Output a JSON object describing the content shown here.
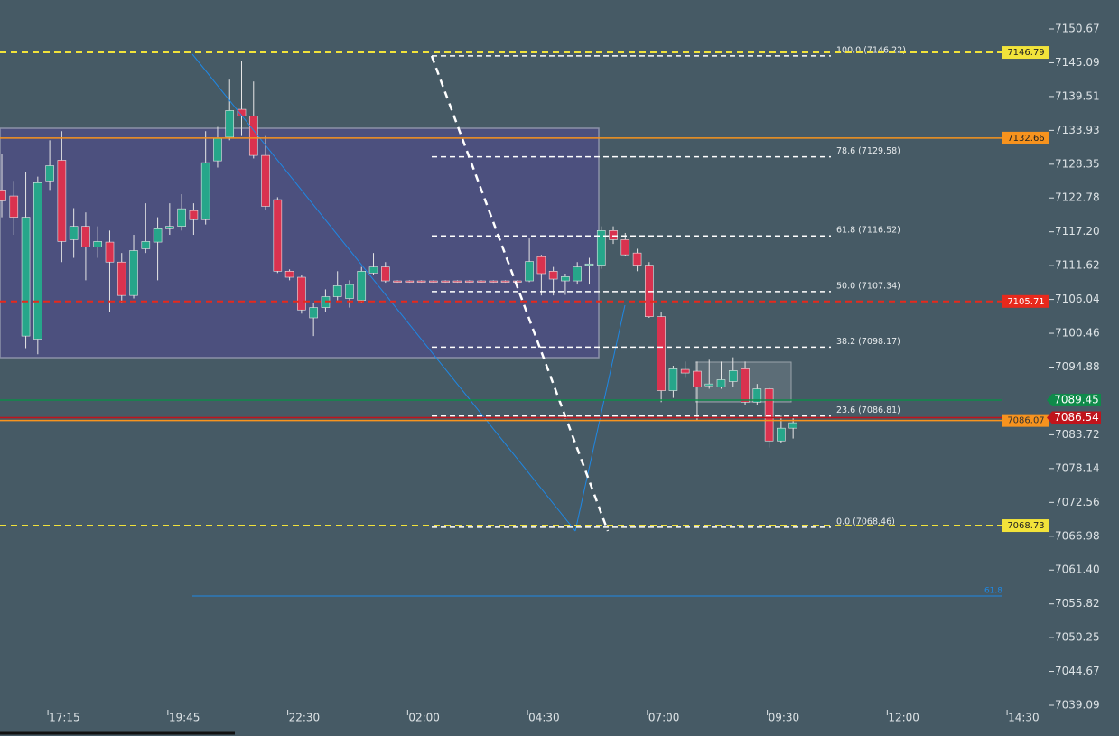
{
  "chart_data": {
    "type": "candlestick",
    "up_color": "#26a68a",
    "down_color": "#d9324f",
    "categories": [
      null,
      null,
      null,
      null,
      "17:15",
      null,
      null,
      null,
      null,
      null,
      null,
      null,
      null,
      null,
      "19:45",
      null,
      null,
      null,
      null,
      null,
      null,
      null,
      null,
      null,
      "22:30",
      null,
      null,
      null,
      null,
      null,
      null,
      null,
      null,
      null,
      "02:00",
      null,
      null,
      null,
      null,
      null,
      null,
      null,
      null,
      null,
      "04:30",
      null,
      null,
      null,
      null,
      null,
      null,
      null,
      null,
      null,
      "07:00",
      null,
      null,
      null,
      null,
      null,
      null,
      null,
      null,
      null,
      "09:30",
      null,
      null,
      null,
      null,
      null,
      null,
      null,
      null,
      null,
      "12:00",
      null,
      null,
      null,
      null,
      null,
      null,
      null,
      null,
      null,
      "14:30"
    ],
    "open": [
      7124.1,
      7123.1,
      7100.0,
      7099.5,
      7125.6,
      7129.0,
      7115.9,
      7118.1,
      7114.7,
      7115.5,
      7112.2,
      7106.7,
      7114.4,
      7115.5,
      7117.7,
      7118.1,
      7120.7,
      7119.2,
      7128.9,
      7132.8,
      7137.4,
      7136.3,
      7129.8,
      7122.5,
      7110.7,
      7109.7,
      7103.0,
      7104.7,
      7106.5,
      7106.2,
      7105.9,
      7110.4,
      7111.4,
      7109.1,
      7109.1,
      7109.1,
      7109.1,
      7109.1,
      7109.1,
      7109.1,
      7109.1,
      7109.1,
      7109.1,
      7109.1,
      7109.1,
      7113.1,
      7110.7,
      7109.1,
      7109.1,
      7111.7,
      7111.7,
      7117.4,
      7115.9,
      7113.7,
      7111.7,
      7103.2,
      7091.0,
      7094.5,
      7094.2,
      7091.8,
      7091.6,
      7092.5,
      7094.6,
      7089.1,
      7091.3,
      7082.7,
      7084.8,
      null,
      null,
      null,
      null,
      null,
      null,
      null,
      null,
      null,
      null,
      null,
      null,
      null,
      null,
      null,
      null,
      null,
      null
    ],
    "high": [
      7130.1,
      7125.6,
      7127.1,
      7126.3,
      7132.3,
      7133.8,
      7121.1,
      7120.4,
      7118.1,
      7117.4,
      7113.7,
      7116.7,
      7121.9,
      7119.6,
      7121.9,
      7123.4,
      7121.9,
      7133.8,
      7134.5,
      7142.3,
      7145.3,
      7142.0,
      7133.0,
      7122.9,
      7111.0,
      7110.0,
      7105.5,
      7107.7,
      7110.7,
      7109.2,
      7111.4,
      7113.7,
      7112.2,
      7109.2,
      7109.2,
      7109.2,
      7109.2,
      7109.2,
      7109.2,
      7109.2,
      7109.2,
      7109.2,
      7109.2,
      7109.2,
      7116.1,
      7113.4,
      7111.4,
      7110.3,
      7112.2,
      7112.9,
      7118.1,
      7118.1,
      7117.0,
      7114.4,
      7112.2,
      7104.0,
      7095.1,
      7095.8,
      7095.8,
      7096.1,
      7095.8,
      7096.5,
      7095.8,
      7092.1,
      7091.6,
      7086.9,
      7086.6,
      null,
      null,
      null,
      null,
      null,
      null,
      null,
      null,
      null,
      null,
      null,
      null,
      null,
      null,
      null,
      null,
      null,
      null
    ],
    "low": [
      7119.6,
      7116.7,
      7098.0,
      7097.0,
      7124.1,
      7112.2,
      7112.9,
      7109.2,
      7112.9,
      7104.0,
      7105.5,
      7106.2,
      7113.7,
      7109.2,
      7116.7,
      7117.4,
      7116.7,
      7118.4,
      7127.8,
      7132.3,
      7133.0,
      7129.3,
      7120.8,
      7110.4,
      7109.2,
      7103.7,
      7100.0,
      7104.0,
      7105.9,
      7104.7,
      7105.5,
      7110.0,
      7108.8,
      7108.8,
      7108.8,
      7108.8,
      7108.8,
      7108.8,
      7108.8,
      7108.8,
      7108.8,
      7108.8,
      7108.8,
      7108.8,
      7108.9,
      7106.7,
      7106.7,
      7106.8,
      7108.5,
      7108.5,
      7111.1,
      7115.2,
      7113.2,
      7110.7,
      7103.0,
      7089.1,
      7089.8,
      7093.1,
      7086.1,
      7091.3,
      7091.3,
      7091.6,
      7088.6,
      7088.6,
      7081.6,
      7082.4,
      7083.1,
      null,
      null,
      null,
      null,
      null,
      null,
      null,
      null,
      null,
      null,
      null,
      null,
      null,
      null,
      null,
      null,
      null,
      null
    ],
    "close": [
      7122.3,
      7119.6,
      7119.6,
      7125.3,
      7128.1,
      7115.6,
      7118.1,
      7114.7,
      7115.6,
      7112.2,
      7106.7,
      7114.1,
      7115.6,
      7117.7,
      7118.1,
      7121.0,
      7119.2,
      7128.6,
      7132.6,
      7137.2,
      7136.3,
      7129.8,
      7121.4,
      7110.7,
      7109.7,
      7104.3,
      7104.7,
      7106.5,
      7108.3,
      7108.5,
      7110.7,
      7111.4,
      7109.1,
      7108.9,
      7108.9,
      7108.9,
      7108.9,
      7108.9,
      7108.9,
      7108.9,
      7108.9,
      7108.9,
      7108.9,
      7108.9,
      7112.3,
      7110.3,
      7109.4,
      7109.8,
      7111.4,
      7111.9,
      7117.4,
      7115.9,
      7113.4,
      7111.7,
      7103.2,
      7091.0,
      7094.6,
      7093.9,
      7091.6,
      7092.1,
      7092.8,
      7094.3,
      7089.1,
      7091.3,
      7082.7,
      7084.8,
      7085.7,
      null,
      null,
      null,
      null,
      null,
      null,
      null,
      null,
      null,
      null,
      null,
      null,
      null,
      null,
      null,
      null,
      null,
      null
    ],
    "ylim": [
      7039.09,
      7150.67
    ],
    "yticks": [
      7150.67,
      7145.09,
      7139.51,
      7133.93,
      7128.35,
      7122.78,
      {
        "value": 7117.2,
        "label": "7117.20"
      },
      7111.62,
      7106.04,
      7100.46,
      7094.88,
      7083.72,
      7078.14,
      7072.56,
      7066.98,
      {
        "value": 7061.4,
        "label": "7061.40"
      },
      7055.82,
      7050.25,
      7044.67,
      7039.09
    ],
    "price_lines": [
      {
        "price": 7146.79,
        "color": "#f2e33a",
        "text_color": "#222",
        "dashed": true,
        "on_axis": false
      },
      {
        "price": 7132.66,
        "color": "#f7931e",
        "text_color": "#222",
        "dashed": false,
        "on_axis": false
      },
      {
        "price": 7105.71,
        "color": "#e8291c",
        "text_color": "#fff",
        "dashed": true,
        "on_axis": false
      },
      {
        "price": 7089.45,
        "color": "#0f8a4a",
        "text_color": "#fff",
        "dashed": false,
        "on_axis": true
      },
      {
        "price": 7086.07,
        "color": "#f7931e",
        "text_color": "#333",
        "dashed": false,
        "on_axis": false
      },
      {
        "price": 7086.54,
        "color": "#c0141c",
        "text_color": "#fff",
        "dashed": false,
        "on_axis": true
      },
      {
        "price": 7068.73,
        "color": "#f2e33a",
        "text_color": "#222",
        "dashed": true,
        "on_axis": false
      }
    ],
    "fib_levels": [
      {
        "label": "100.0 (7146.22)",
        "price": 7146.22
      },
      {
        "label": "78.6 (7129.58)",
        "price": 7129.58
      },
      {
        "label": "61.8 (7116.52)",
        "price": 7116.52
      },
      {
        "label": "50.0 (7107.34)",
        "price": 7107.34
      },
      {
        "label": "38.2 (7098.17)",
        "price": 7098.17
      },
      {
        "label": "23.6 (7086.81)",
        "price": 7086.81
      },
      {
        "label": "0.0 (7068.46)",
        "price": 7068.46
      }
    ],
    "annotations": [
      "61.8"
    ]
  }
}
